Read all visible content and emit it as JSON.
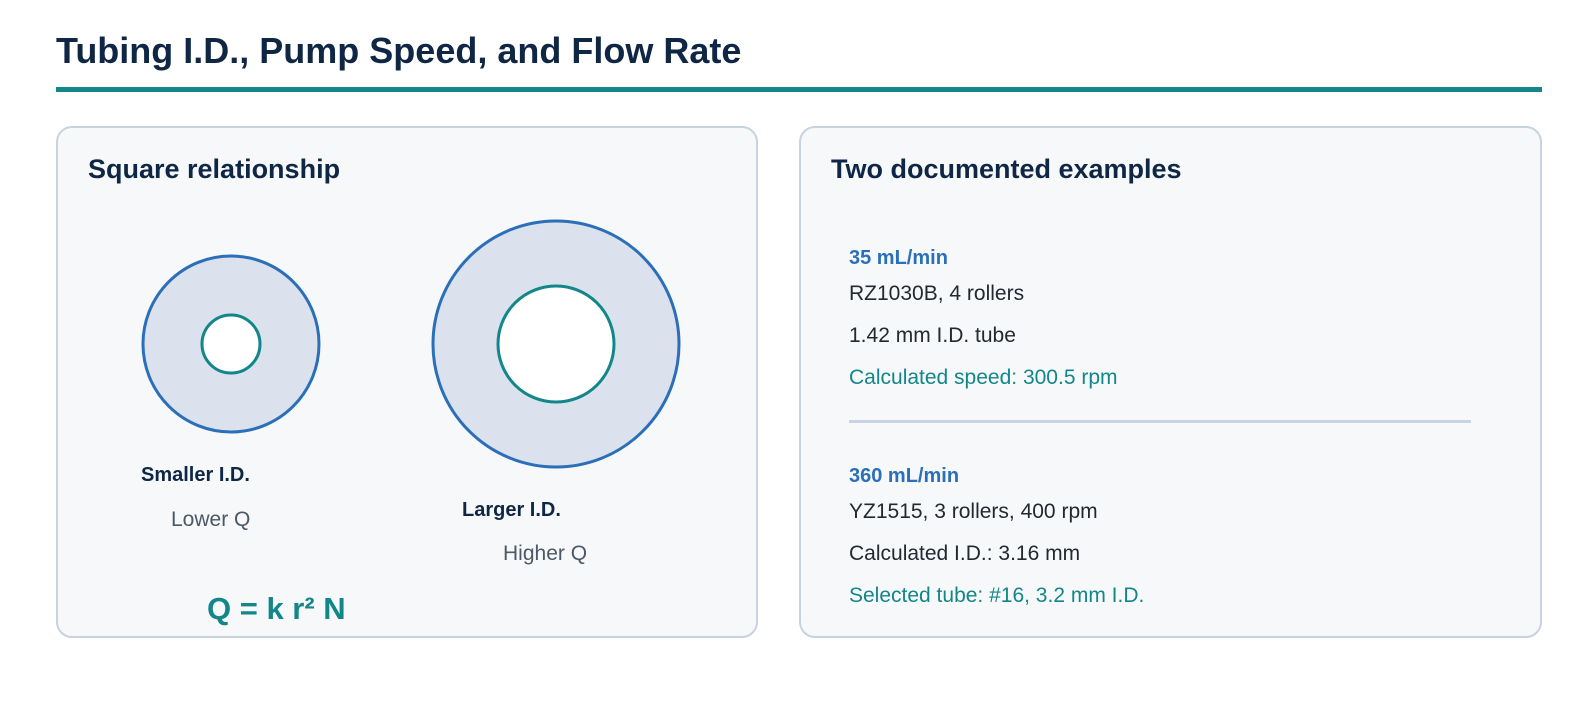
{
  "page": {
    "title": "Tubing I.D., Pump Speed, and Flow Rate"
  },
  "left_panel": {
    "heading": "Square relationship",
    "small_tube": {
      "label": "Smaller I.D.",
      "flow": "Lower Q"
    },
    "large_tube": {
      "label": "Larger I.D.",
      "flow": "Higher Q"
    },
    "formula": "Q = k r² N",
    "colors": {
      "outer_ring": "#2a6fb8",
      "bore_ring": "#13868a",
      "tube_wall": "#dbe2ed"
    }
  },
  "right_panel": {
    "heading": "Two documented examples",
    "examples": [
      {
        "rate": "35 mL/min",
        "pump": "RZ1030B, 4 rollers",
        "tube": "1.42 mm I.D. tube",
        "result": "Calculated speed: 300.5 rpm"
      },
      {
        "rate": "360 mL/min",
        "pump": "YZ1515, 3 rollers, 400 rpm",
        "tube": "Calculated I.D.: 3.16 mm",
        "result": "Selected tube: #16, 3.2 mm I.D."
      }
    ]
  }
}
